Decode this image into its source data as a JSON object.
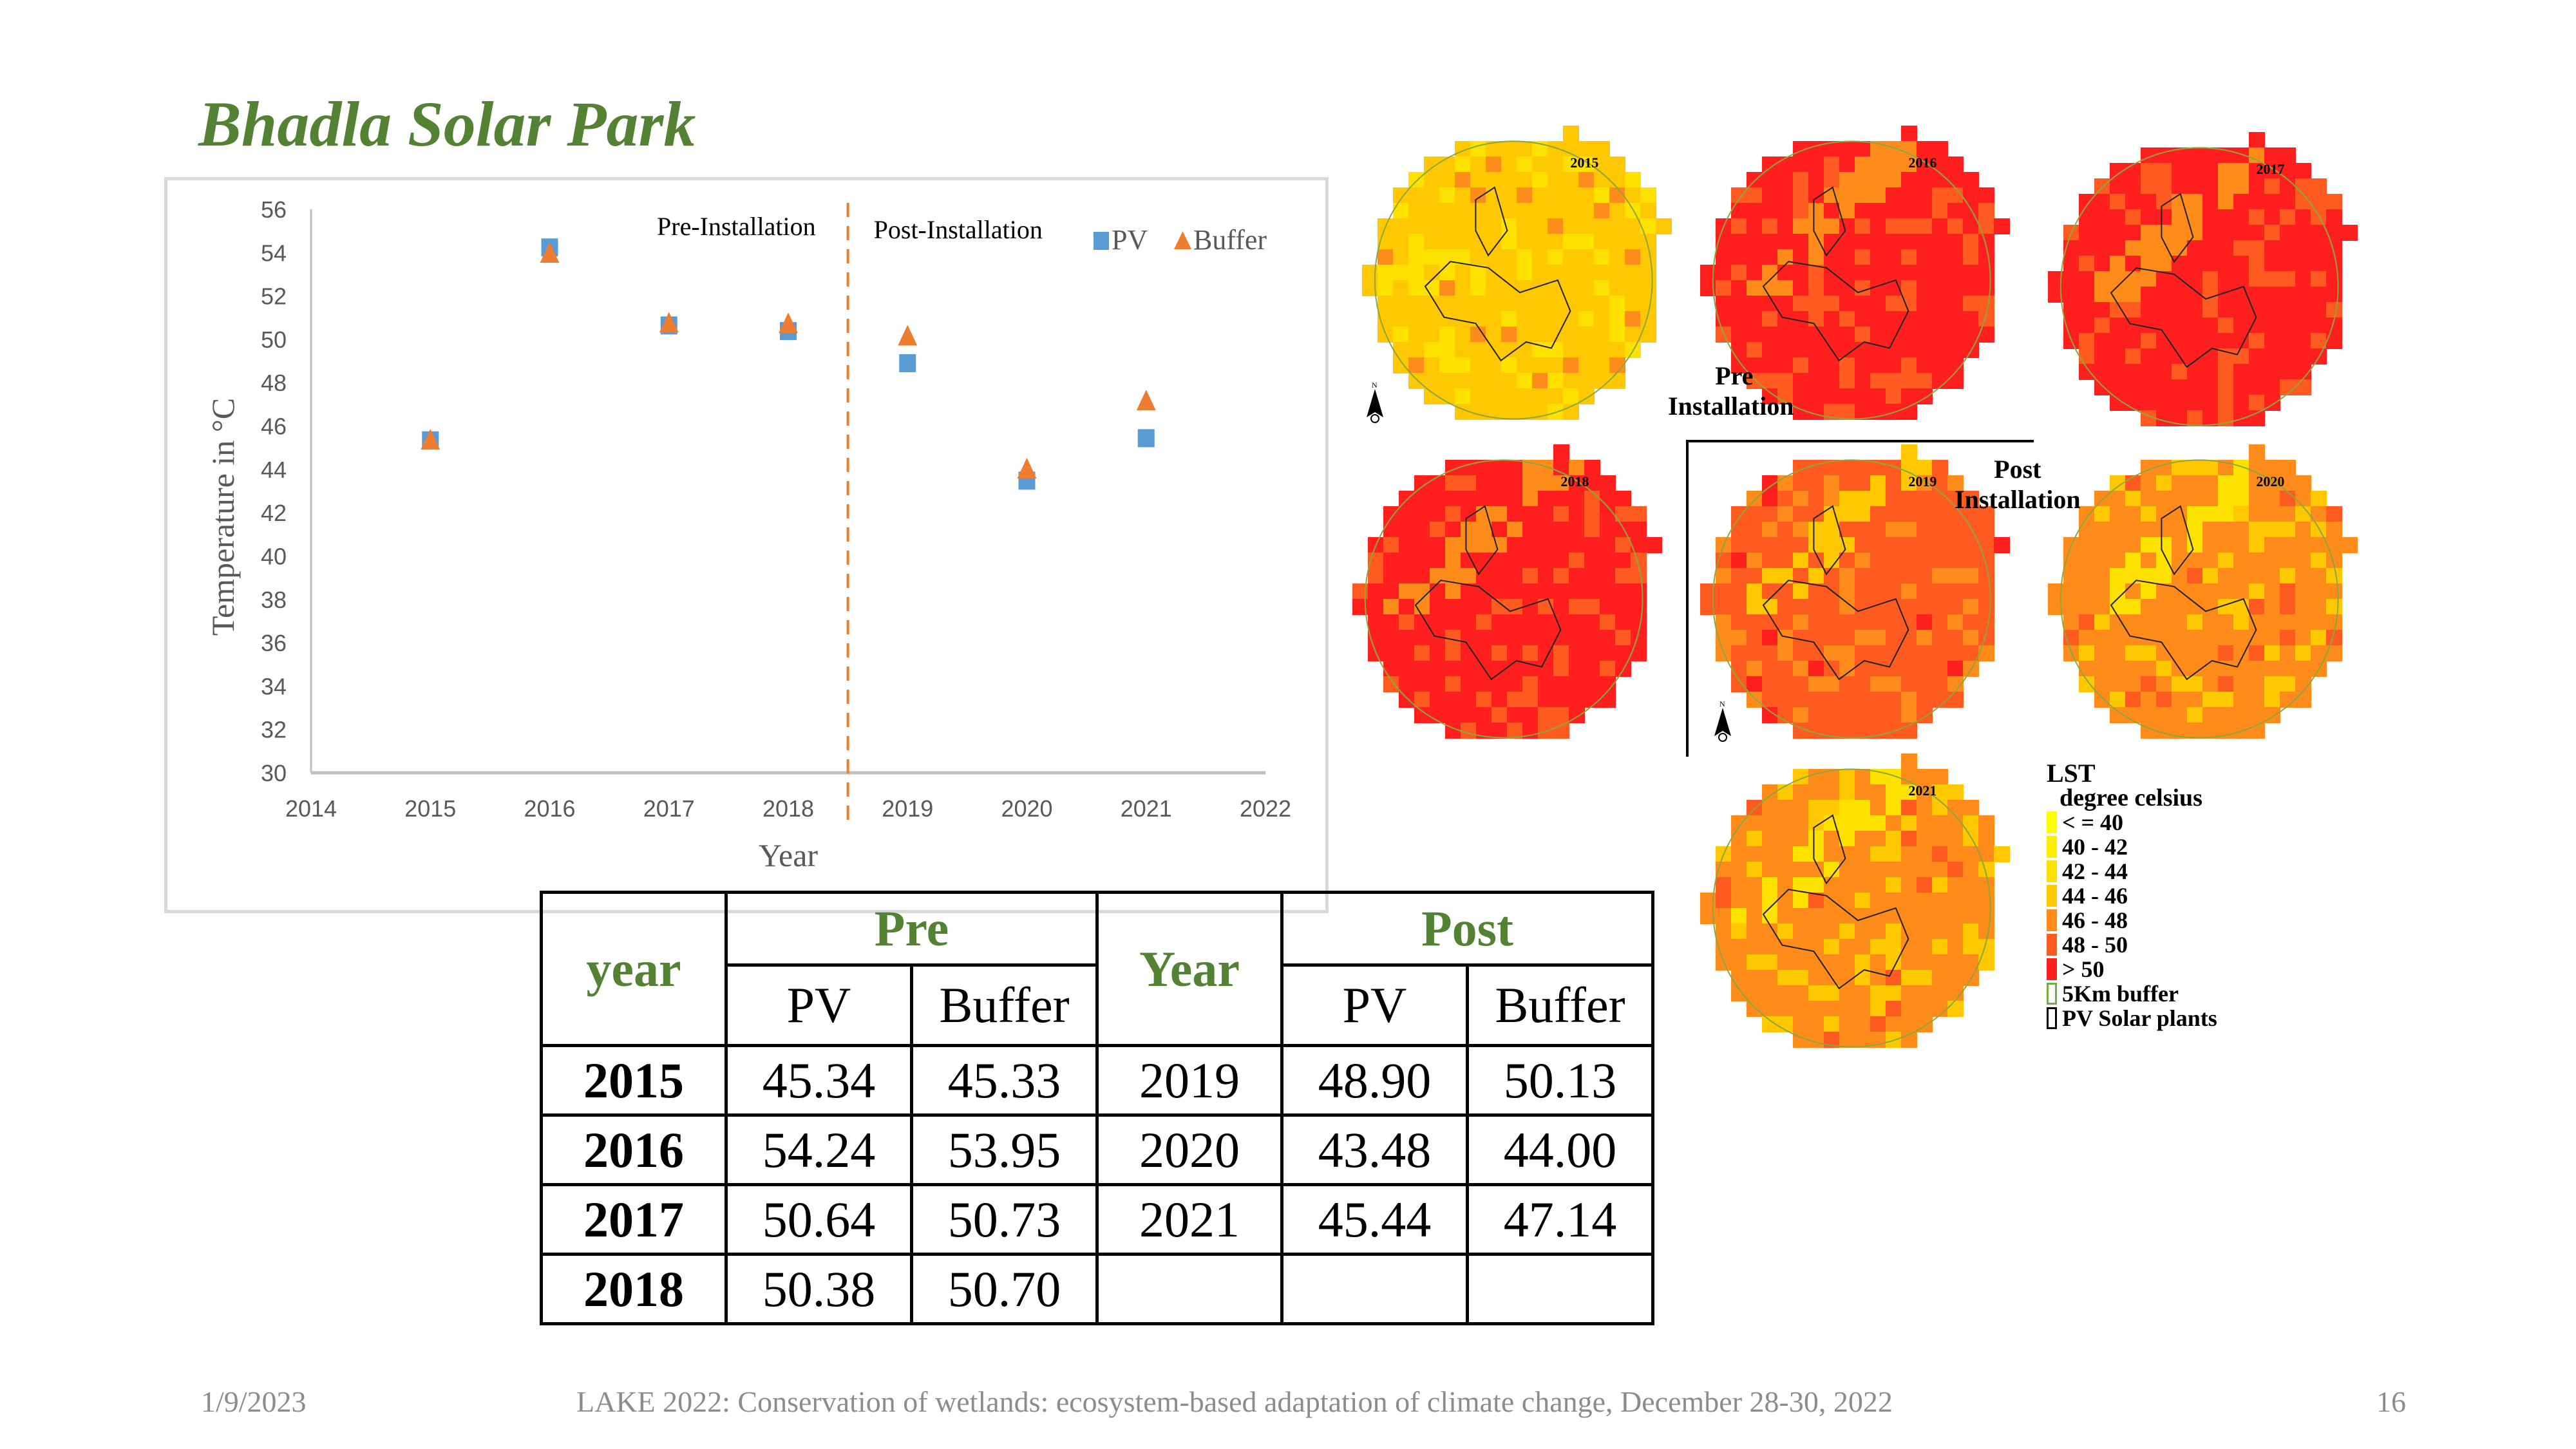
{
  "slide": {
    "title": "Bhadla Solar Park",
    "footer": {
      "date": "1/9/2023",
      "event": "LAKE 2022: Conservation of wetlands: ecosystem-based adaptation of climate change, December 28-30, 2022",
      "page_number": "16"
    }
  },
  "chart_data": {
    "type": "scatter",
    "title": "",
    "xlabel": "Year",
    "ylabel": "Temperature in °C",
    "xlim": [
      2014,
      2022
    ],
    "ylim": [
      30,
      56
    ],
    "x_ticks": [
      "2014",
      "2015",
      "2016",
      "2017",
      "2018",
      "2019",
      "2020",
      "2021",
      "2022"
    ],
    "y_ticks": [
      "30",
      "32",
      "34",
      "36",
      "38",
      "40",
      "42",
      "44",
      "46",
      "48",
      "50",
      "52",
      "54",
      "56"
    ],
    "grid": false,
    "legend_position": "top-right",
    "divider_x": 2018.5,
    "annotations": [
      {
        "text": "Pre-Installation",
        "side": "left-of-divider"
      },
      {
        "text": "Post-Installation",
        "side": "right-of-divider"
      }
    ],
    "series": [
      {
        "name": "PV",
        "marker": "square",
        "color": "#5B9BD5",
        "x": [
          2015,
          2016,
          2017,
          2018,
          2019,
          2020,
          2021
        ],
        "values": [
          45.34,
          54.24,
          50.64,
          50.38,
          48.9,
          43.48,
          45.44
        ]
      },
      {
        "name": "Buffer",
        "marker": "triangle",
        "color": "#ED7D31",
        "x": [
          2015,
          2016,
          2017,
          2018,
          2019,
          2020,
          2021
        ],
        "values": [
          45.33,
          53.95,
          50.73,
          50.7,
          50.13,
          44.0,
          47.14
        ]
      }
    ]
  },
  "table": {
    "pre_group": "Pre",
    "post_group": "Post",
    "pre_year_header": "year",
    "post_year_header": "Year",
    "pre_cols": [
      "PV",
      "Buffer"
    ],
    "post_cols": [
      "PV",
      "Buffer"
    ],
    "rows": [
      {
        "pre_year": "2015",
        "pre_pv": "45.34",
        "pre_buffer": "45.33",
        "post_year": "2019",
        "post_pv": "48.90",
        "post_buffer": "50.13"
      },
      {
        "pre_year": "2016",
        "pre_pv": "54.24",
        "pre_buffer": "53.95",
        "post_year": "2020",
        "post_pv": "43.48",
        "post_buffer": "44.00"
      },
      {
        "pre_year": "2017",
        "pre_pv": "50.64",
        "pre_buffer": "50.73",
        "post_year": "2021",
        "post_pv": "45.44",
        "post_buffer": "47.14"
      },
      {
        "pre_year": "2018",
        "pre_pv": "50.38",
        "pre_buffer": "50.70",
        "post_year": "",
        "post_pv": "",
        "post_buffer": ""
      }
    ]
  },
  "maps": {
    "panels": [
      {
        "year": "2015",
        "dominant_class": "44 - 46"
      },
      {
        "year": "2016",
        "dominant_class": "> 50"
      },
      {
        "year": "2017",
        "dominant_class": "> 50"
      },
      {
        "year": "2018",
        "dominant_class": "> 50"
      },
      {
        "year": "2019",
        "dominant_class": "48 - 50"
      },
      {
        "year": "2020",
        "dominant_class": "46 - 48"
      },
      {
        "year": "2021",
        "dominant_class": "46 - 48"
      }
    ],
    "pre_label": [
      "Pre",
      "Installation"
    ],
    "post_label": [
      "Post",
      "Installation"
    ],
    "north_icon": "north-arrow-icon",
    "legend": {
      "title": "LST",
      "subtitle": "degree celsius",
      "classes": [
        {
          "label": "< = 40",
          "color": "#FFFF00"
        },
        {
          "label": "40 - 42",
          "color": "#FFEE00"
        },
        {
          "label": "42 - 44",
          "color": "#FFE100"
        },
        {
          "label": "44 - 46",
          "color": "#FFC800"
        },
        {
          "label": "46 - 48",
          "color": "#FF8C1A"
        },
        {
          "label": "48 - 50",
          "color": "#FF5A1F"
        },
        {
          "label": "> 50",
          "color": "#FF1F1F"
        }
      ],
      "buffer_label": "5Km buffer",
      "pv_label": "PV Solar plants"
    }
  },
  "colors": {
    "title_green": "#548235",
    "pv_blue": "#5B9BD5",
    "buffer_orange": "#ED7D31",
    "axis_gray": "#bfbfbf",
    "footer_gray": "#8c8c8c"
  }
}
